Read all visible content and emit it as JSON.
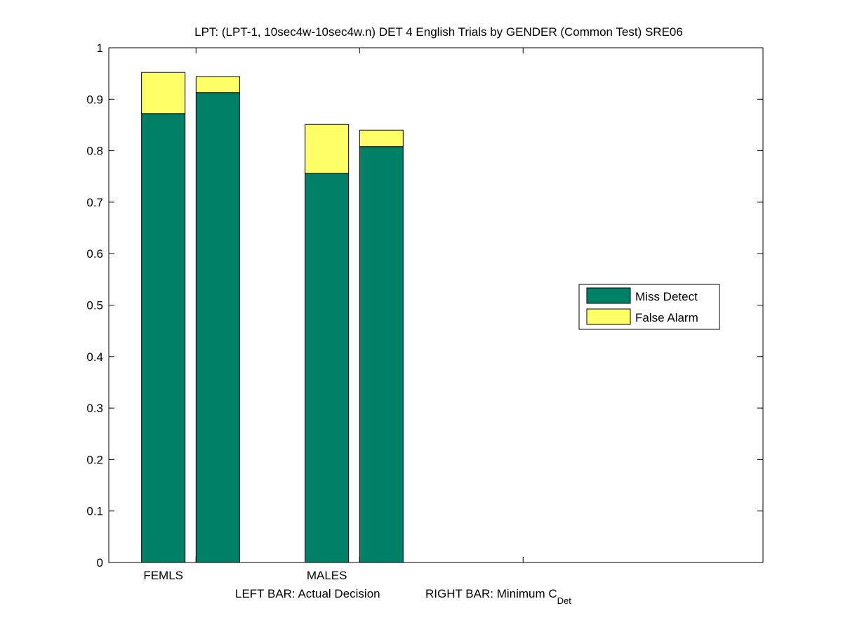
{
  "chart_data": {
    "type": "bar",
    "stacked": true,
    "title": "LPT: (LPT-1, 10sec4w-10sec4w.n) DET 4 English Trials by GENDER (Common Test) SRE06",
    "xlabel": {
      "left": "LEFT BAR: Actual Decision",
      "right_prefix": "RIGHT BAR: Minimum C",
      "right_subscript": "Det"
    },
    "ylabel": "",
    "ylim": [
      0,
      1
    ],
    "yticks": [
      "0",
      "0.1",
      "0.2",
      "0.3",
      "0.4",
      "0.5",
      "0.6",
      "0.7",
      "0.8",
      "0.9",
      "1"
    ],
    "x_group_ticks": [
      {
        "label": "FEMLS",
        "tick_at": 1
      },
      {
        "label": "MALES",
        "tick_at": 2.5
      }
    ],
    "xlim": [
      0.2,
      6.2
    ],
    "bars": [
      {
        "group": "FEMLS",
        "which": "Actual Decision",
        "x": 0.7,
        "miss_detect": 0.872,
        "false_alarm": 0.08
      },
      {
        "group": "FEMLS",
        "which": "Minimum C_Det",
        "x": 1.2,
        "miss_detect": 0.913,
        "false_alarm": 0.031
      },
      {
        "group": "MALES",
        "which": "Actual Decision",
        "x": 2.2,
        "miss_detect": 0.756,
        "false_alarm": 0.095
      },
      {
        "group": "MALES",
        "which": "Minimum C_Det",
        "x": 2.7,
        "miss_detect": 0.808,
        "false_alarm": 0.032
      }
    ],
    "series": [
      {
        "name": "Miss Detect",
        "color": "#008066"
      },
      {
        "name": "False Alarm",
        "color": "#ffff66"
      }
    ],
    "grid": false,
    "legend_position": "right"
  }
}
